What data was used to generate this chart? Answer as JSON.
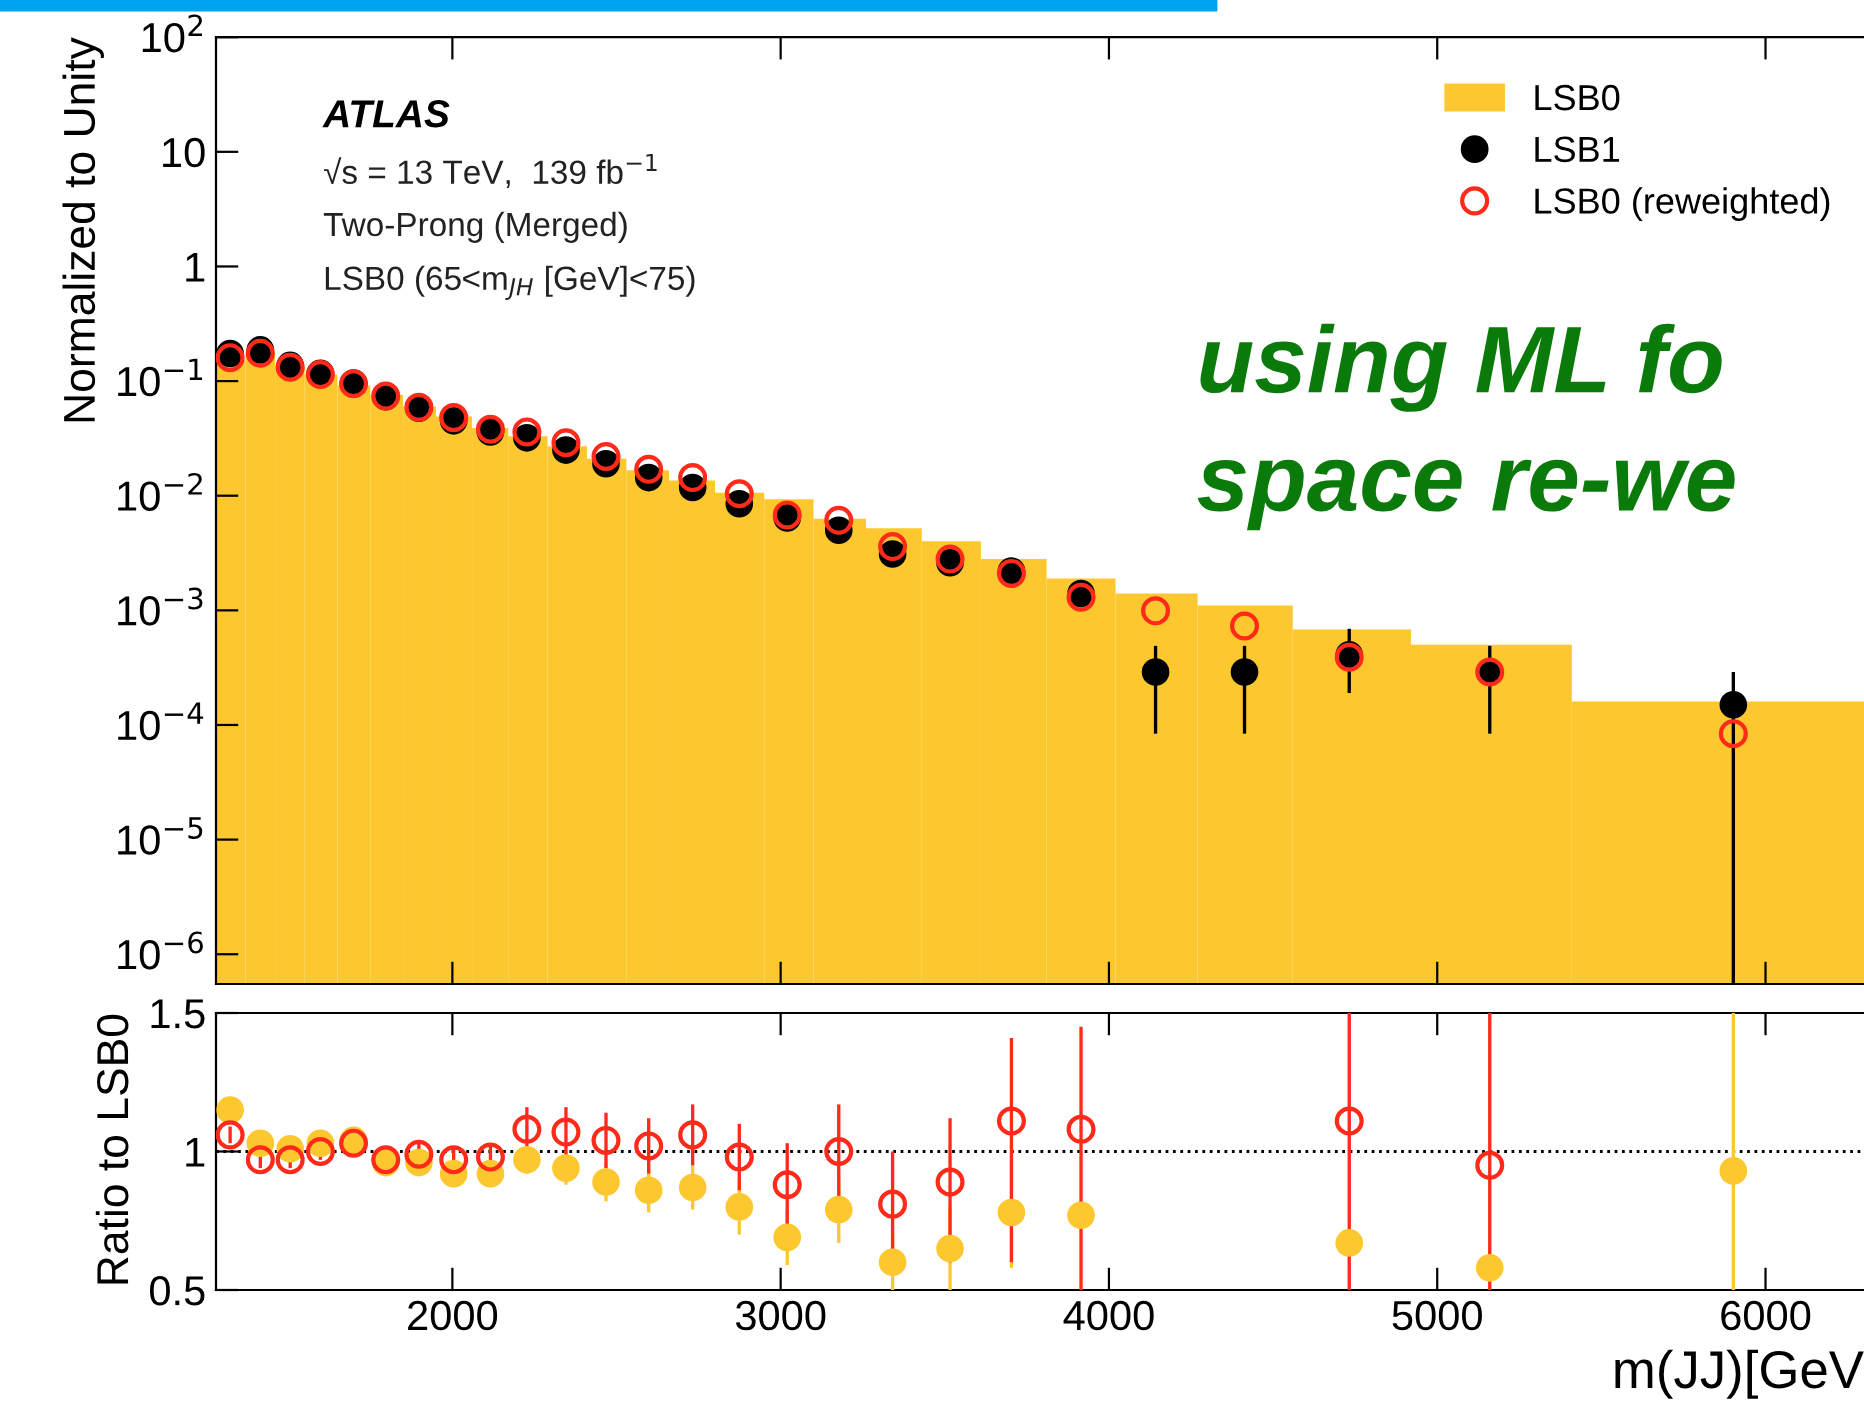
{
  "chart_data": [
    {
      "type": "histogram",
      "ylabel": "Normalized to Unity",
      "log": "y",
      "xlim": [
        1280,
        6300
      ],
      "ylim": [
        5.5e-07,
        100
      ],
      "xticks": [
        2000,
        3000,
        4000,
        5000,
        6000
      ],
      "tick_labels": "y",
      "yticks": [
        {
          "value": 1e-06,
          "label": "10$^{−6}$"
        },
        {
          "value": 1e-05,
          "label": "10$^{−5}$"
        },
        {
          "value": 0.0001,
          "label": "10$^{−4}$"
        },
        {
          "value": 0.001,
          "label": "10$^{−3}$"
        },
        {
          "value": 0.01,
          "label": "10$^{−2}$"
        },
        {
          "value": 0.1,
          "label": "10$^{−1}$"
        },
        1,
        10,
        {
          "value": 100,
          "label": "10$^{2}$"
        }
      ],
      "bins": [
        1280,
        1370,
        1460,
        1550,
        1650,
        1750,
        1850,
        1950,
        2060,
        2170,
        2290,
        2410,
        2530,
        2660,
        2800,
        2950,
        3100,
        3260,
        3430,
        3610,
        3810,
        4020,
        4270,
        4560,
        4920,
        5410,
        6300
      ],
      "legend": "top right",
      "marker": "circle",
      "annotations": [
        "ATLAS",
        "√s = 13 TeV,  139 fb$^{−1}$",
        "Two-Prong (Merged)",
        "LSB0 (65<m$_{JH}$ [GeV]<75)",
        "using ML fo",
        "space re-we"
      ],
      "series": [
        {
          "name": "LSB0",
          "type": "histogram",
          "color": "#fdc82f",
          "values": [
            0.151,
            0.18,
            0.136,
            0.114,
            0.092,
            0.076,
            0.06,
            0.049,
            0.039,
            0.033,
            0.027,
            0.021,
            0.0167,
            0.0136,
            0.0106,
            0.0093,
            0.0063,
            0.0052,
            0.004,
            0.0028,
            0.0019,
            0.0014,
            0.0011,
            0.00068,
            0.0005,
            0.00016
          ]
        },
        {
          "name": "LSB1",
          "type": "scatter",
          "color": "#000000",
          "x": [
            1323,
            1415,
            1506,
            1598,
            1699,
            1797,
            1898,
            2004,
            2116,
            2227,
            2346,
            2468,
            2598,
            2732,
            2874,
            3020,
            3177,
            3341,
            3516,
            3703,
            3915,
            4142,
            4413,
            4732,
            5160,
            5902
          ],
          "values": [
            0.174,
            0.187,
            0.137,
            0.117,
            0.096,
            0.073,
            0.058,
            0.045,
            0.036,
            0.032,
            0.025,
            0.019,
            0.0144,
            0.0118,
            0.0085,
            0.0064,
            0.005,
            0.0031,
            0.0026,
            0.0022,
            0.0014,
            0.00029,
            0.00029,
            0.00041,
            0.00029,
            0.00015
          ],
          "errors": [
            null,
            null,
            null,
            null,
            null,
            null,
            null,
            null,
            null,
            null,
            null,
            null,
            null,
            null,
            null,
            null,
            null,
            null,
            null,
            null,
            [
              0.0011,
              0.0017
            ],
            [
              8.4e-05,
              0.00049
            ],
            [
              8.4e-05,
              0.00049
            ],
            [
              0.00019,
              0.00069
            ],
            [
              8.4e-05,
              0.00049
            ],
            [
              5.5e-07,
              0.00029
            ]
          ]
        },
        {
          "name": "LSB0 (reweighted)",
          "type": "scatter",
          "color": "#ff2a1a",
          "x": [
            1323,
            1415,
            1506,
            1598,
            1699,
            1797,
            1898,
            2004,
            2116,
            2227,
            2346,
            2468,
            2598,
            2732,
            2874,
            3020,
            3177,
            3341,
            3516,
            3703,
            3915,
            4142,
            4413,
            4732,
            5160,
            5902
          ],
          "values": [
            0.16,
            0.175,
            0.132,
            0.114,
            0.095,
            0.074,
            0.059,
            0.048,
            0.038,
            0.036,
            0.029,
            0.022,
            0.017,
            0.0144,
            0.0104,
            0.0068,
            0.0061,
            0.0036,
            0.0028,
            0.0021,
            0.0013,
            0.00099,
            0.00073,
            0.00039,
            0.00029,
            8.4e-05
          ]
        }
      ]
    },
    {
      "type": "scatter",
      "ylabel": "Ratio to LSB0",
      "xlabel": "m(JJ)[GeV",
      "xlim": [
        1280,
        6300
      ],
      "ylim": [
        0.5,
        1.5
      ],
      "xticks": [
        2000,
        3000,
        4000,
        5000,
        6000
      ],
      "yticks": [
        0.5,
        1,
        1.5
      ],
      "marker": "circle",
      "ref_lines": [
        {
          "axis": "y",
          "value": 1,
          "line_style": "dotted",
          "color": "#000000"
        }
      ],
      "x": [
        1323,
        1415,
        1506,
        1598,
        1699,
        1797,
        1898,
        2004,
        2116,
        2227,
        2346,
        2468,
        2598,
        2732,
        2874,
        3020,
        3177,
        3341,
        3516,
        3703,
        3915,
        4142,
        4413,
        4732,
        5160,
        5902
      ],
      "series": [
        {
          "color": "#fdc82f",
          "values": [
            1.15,
            1.03,
            1.01,
            1.03,
            1.04,
            0.96,
            0.96,
            0.92,
            0.92,
            0.97,
            0.94,
            0.89,
            0.86,
            0.87,
            0.8,
            0.69,
            0.79,
            0.6,
            0.65,
            0.78,
            0.77,
            null,
            null,
            0.67,
            0.58,
            0.93
          ],
          "errors": [
            null,
            null,
            null,
            null,
            null,
            null,
            null,
            null,
            null,
            0.05,
            0.06,
            0.07,
            0.08,
            0.08,
            0.1,
            0.1,
            0.12,
            0.1,
            0.15,
            0.2,
            null,
            null,
            null,
            null,
            null,
            [
              0.5,
              1.5
            ]
          ]
        },
        {
          "color": "#ff2a1a",
          "values": [
            1.06,
            0.97,
            0.97,
            1.0,
            1.03,
            0.97,
            0.99,
            0.97,
            0.98,
            1.08,
            1.07,
            1.04,
            1.02,
            1.06,
            0.98,
            0.88,
            1.0,
            0.81,
            0.89,
            1.11,
            1.08,
            null,
            null,
            1.11,
            0.95,
            null
          ],
          "errors": [
            0.03,
            0.03,
            0.03,
            0.03,
            0.03,
            0.04,
            0.04,
            0.04,
            0.05,
            0.08,
            0.09,
            0.1,
            0.1,
            0.11,
            0.12,
            0.15,
            0.17,
            0.19,
            [
              0.6,
              1.12
            ],
            [
              0.6,
              1.41
            ],
            [
              0.5,
              1.45
            ],
            null,
            null,
            [
              0.5,
              1.5
            ],
            [
              0.5,
              1.5
            ],
            null
          ]
        }
      ]
    }
  ]
}
